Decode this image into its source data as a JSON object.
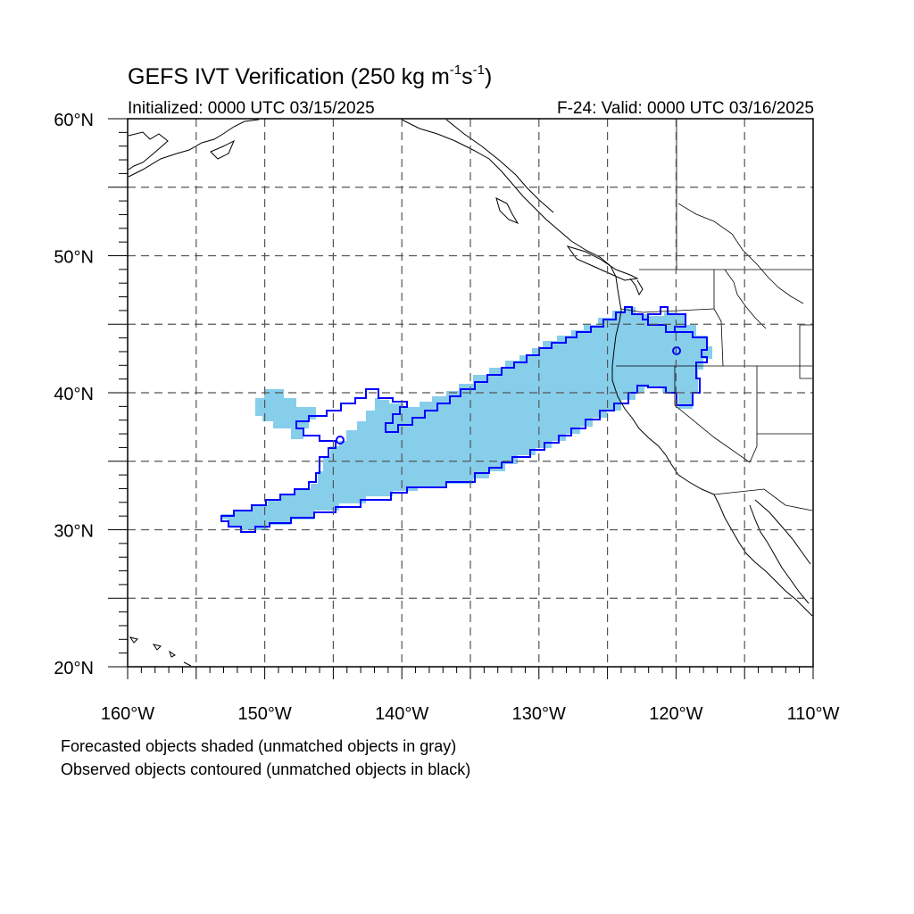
{
  "header": {
    "title_main": "GEFS IVT Verification (250 kg m",
    "title_exp1": "-1",
    "title_mid": "s",
    "title_exp2": "-1",
    "title_end": ")",
    "initialized": "Initialized: 0000 UTC 03/15/2025",
    "valid": "F-24: Valid: 0000 UTC 03/16/2025"
  },
  "map": {
    "lon_range": [
      -160,
      -110
    ],
    "lat_range": [
      20,
      60
    ],
    "lat_labels": [
      {
        "lat": 60,
        "label": "60°N"
      },
      {
        "lat": 50,
        "label": "50°N"
      },
      {
        "lat": 40,
        "label": "40°N"
      },
      {
        "lat": 30,
        "label": "30°N"
      },
      {
        "lat": 20,
        "label": "20°N"
      }
    ],
    "lon_labels": [
      {
        "lon": -160,
        "label": "160°W"
      },
      {
        "lon": -150,
        "label": "150°W"
      },
      {
        "lon": -140,
        "label": "140°W"
      },
      {
        "lon": -130,
        "label": "130°W"
      },
      {
        "lon": -120,
        "label": "120°W"
      },
      {
        "lon": -110,
        "label": "110°W"
      }
    ],
    "grid_spacing_deg": 5,
    "colors": {
      "forecast_fill": "#87ceeb",
      "observed_contour": "#0000ff",
      "coastline": "#000000",
      "grid": "#555555"
    }
  },
  "footer": {
    "line1": "Forecasted objects shaded (unmatched objects in gray)",
    "line2": "Observed objects contoured (unmatched objects in black)"
  }
}
